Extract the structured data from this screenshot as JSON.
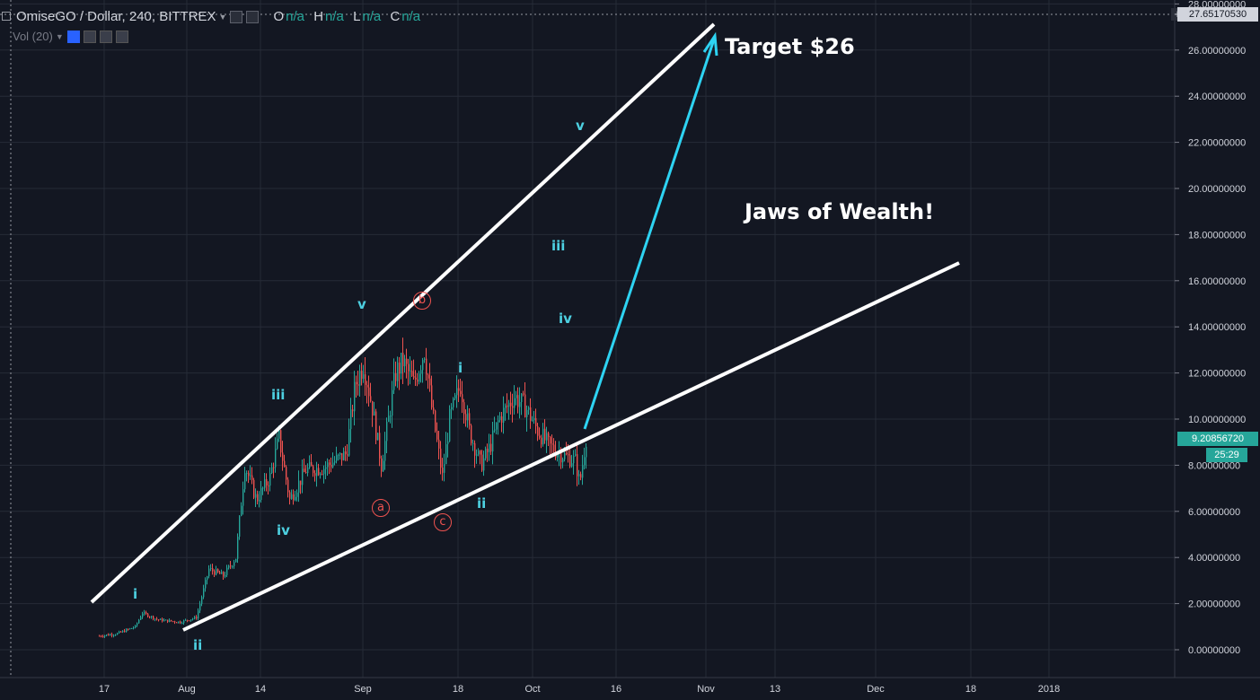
{
  "symbol": {
    "title": "OmiseGO / Dollar, 240, BITTREX",
    "ohlc": [
      {
        "key": "O",
        "value": "n/a"
      },
      {
        "key": "H",
        "value": "n/a"
      },
      {
        "key": "L",
        "value": "n/a"
      },
      {
        "key": "C",
        "value": "n/a"
      }
    ]
  },
  "volume_label": "Vol (20)",
  "price_axis": {
    "ticks": [
      "28.00000000",
      "26.00000000",
      "24.00000000",
      "22.00000000",
      "20.00000000",
      "18.00000000",
      "16.00000000",
      "14.00000000",
      "12.00000000",
      "10.00000000",
      "8.00000000",
      "6.00000000",
      "4.00000000",
      "2.00000000",
      "0.00000000"
    ],
    "top_price_label": "27.65170530",
    "current_price_label": "9.20856720",
    "countdown_label": "25:29"
  },
  "time_axis": {
    "labels": [
      "17",
      "Aug",
      "14",
      "Sep",
      "18",
      "Oct",
      "16",
      "Nov",
      "13",
      "Dec",
      "18",
      "2018"
    ]
  },
  "annotations": {
    "target": "Target $26",
    "jaws": "Jaws of Wealth!",
    "waves": [
      "i",
      "ii",
      "iii",
      "iv",
      "v",
      "i",
      "ii",
      "iii",
      "iv",
      "v"
    ],
    "corrective": [
      "a",
      "b",
      "c"
    ]
  },
  "colors": {
    "background": "#131722",
    "grid": "#262b37",
    "up": "#26a69a",
    "down": "#ef5350",
    "trendline": "#ffffff",
    "arrow": "#2ed3f2",
    "wave_label": "#4dd0e1",
    "corrective_label": "#ef5350"
  },
  "chart_data": {
    "type": "candlestick",
    "title": "OmiseGO / Dollar, 240, BITTREX",
    "ylim": [
      0,
      28
    ],
    "x_tick_labels": [
      "17",
      "Aug",
      "14",
      "Sep",
      "18",
      "Oct",
      "16",
      "Nov",
      "13",
      "Dec",
      "18",
      "2018"
    ],
    "price_path_approx": [
      {
        "t": "17",
        "price": 0.6
      },
      {
        "t": "Aug",
        "price": 1.2
      },
      {
        "t": "14",
        "price": 6.5
      },
      {
        "t": "Sep",
        "price": 12.5
      },
      {
        "t": "18",
        "price": 10.5
      },
      {
        "t": "Oct",
        "price": 8.8
      },
      {
        "t": "last",
        "price": 9.21
      }
    ]
  }
}
